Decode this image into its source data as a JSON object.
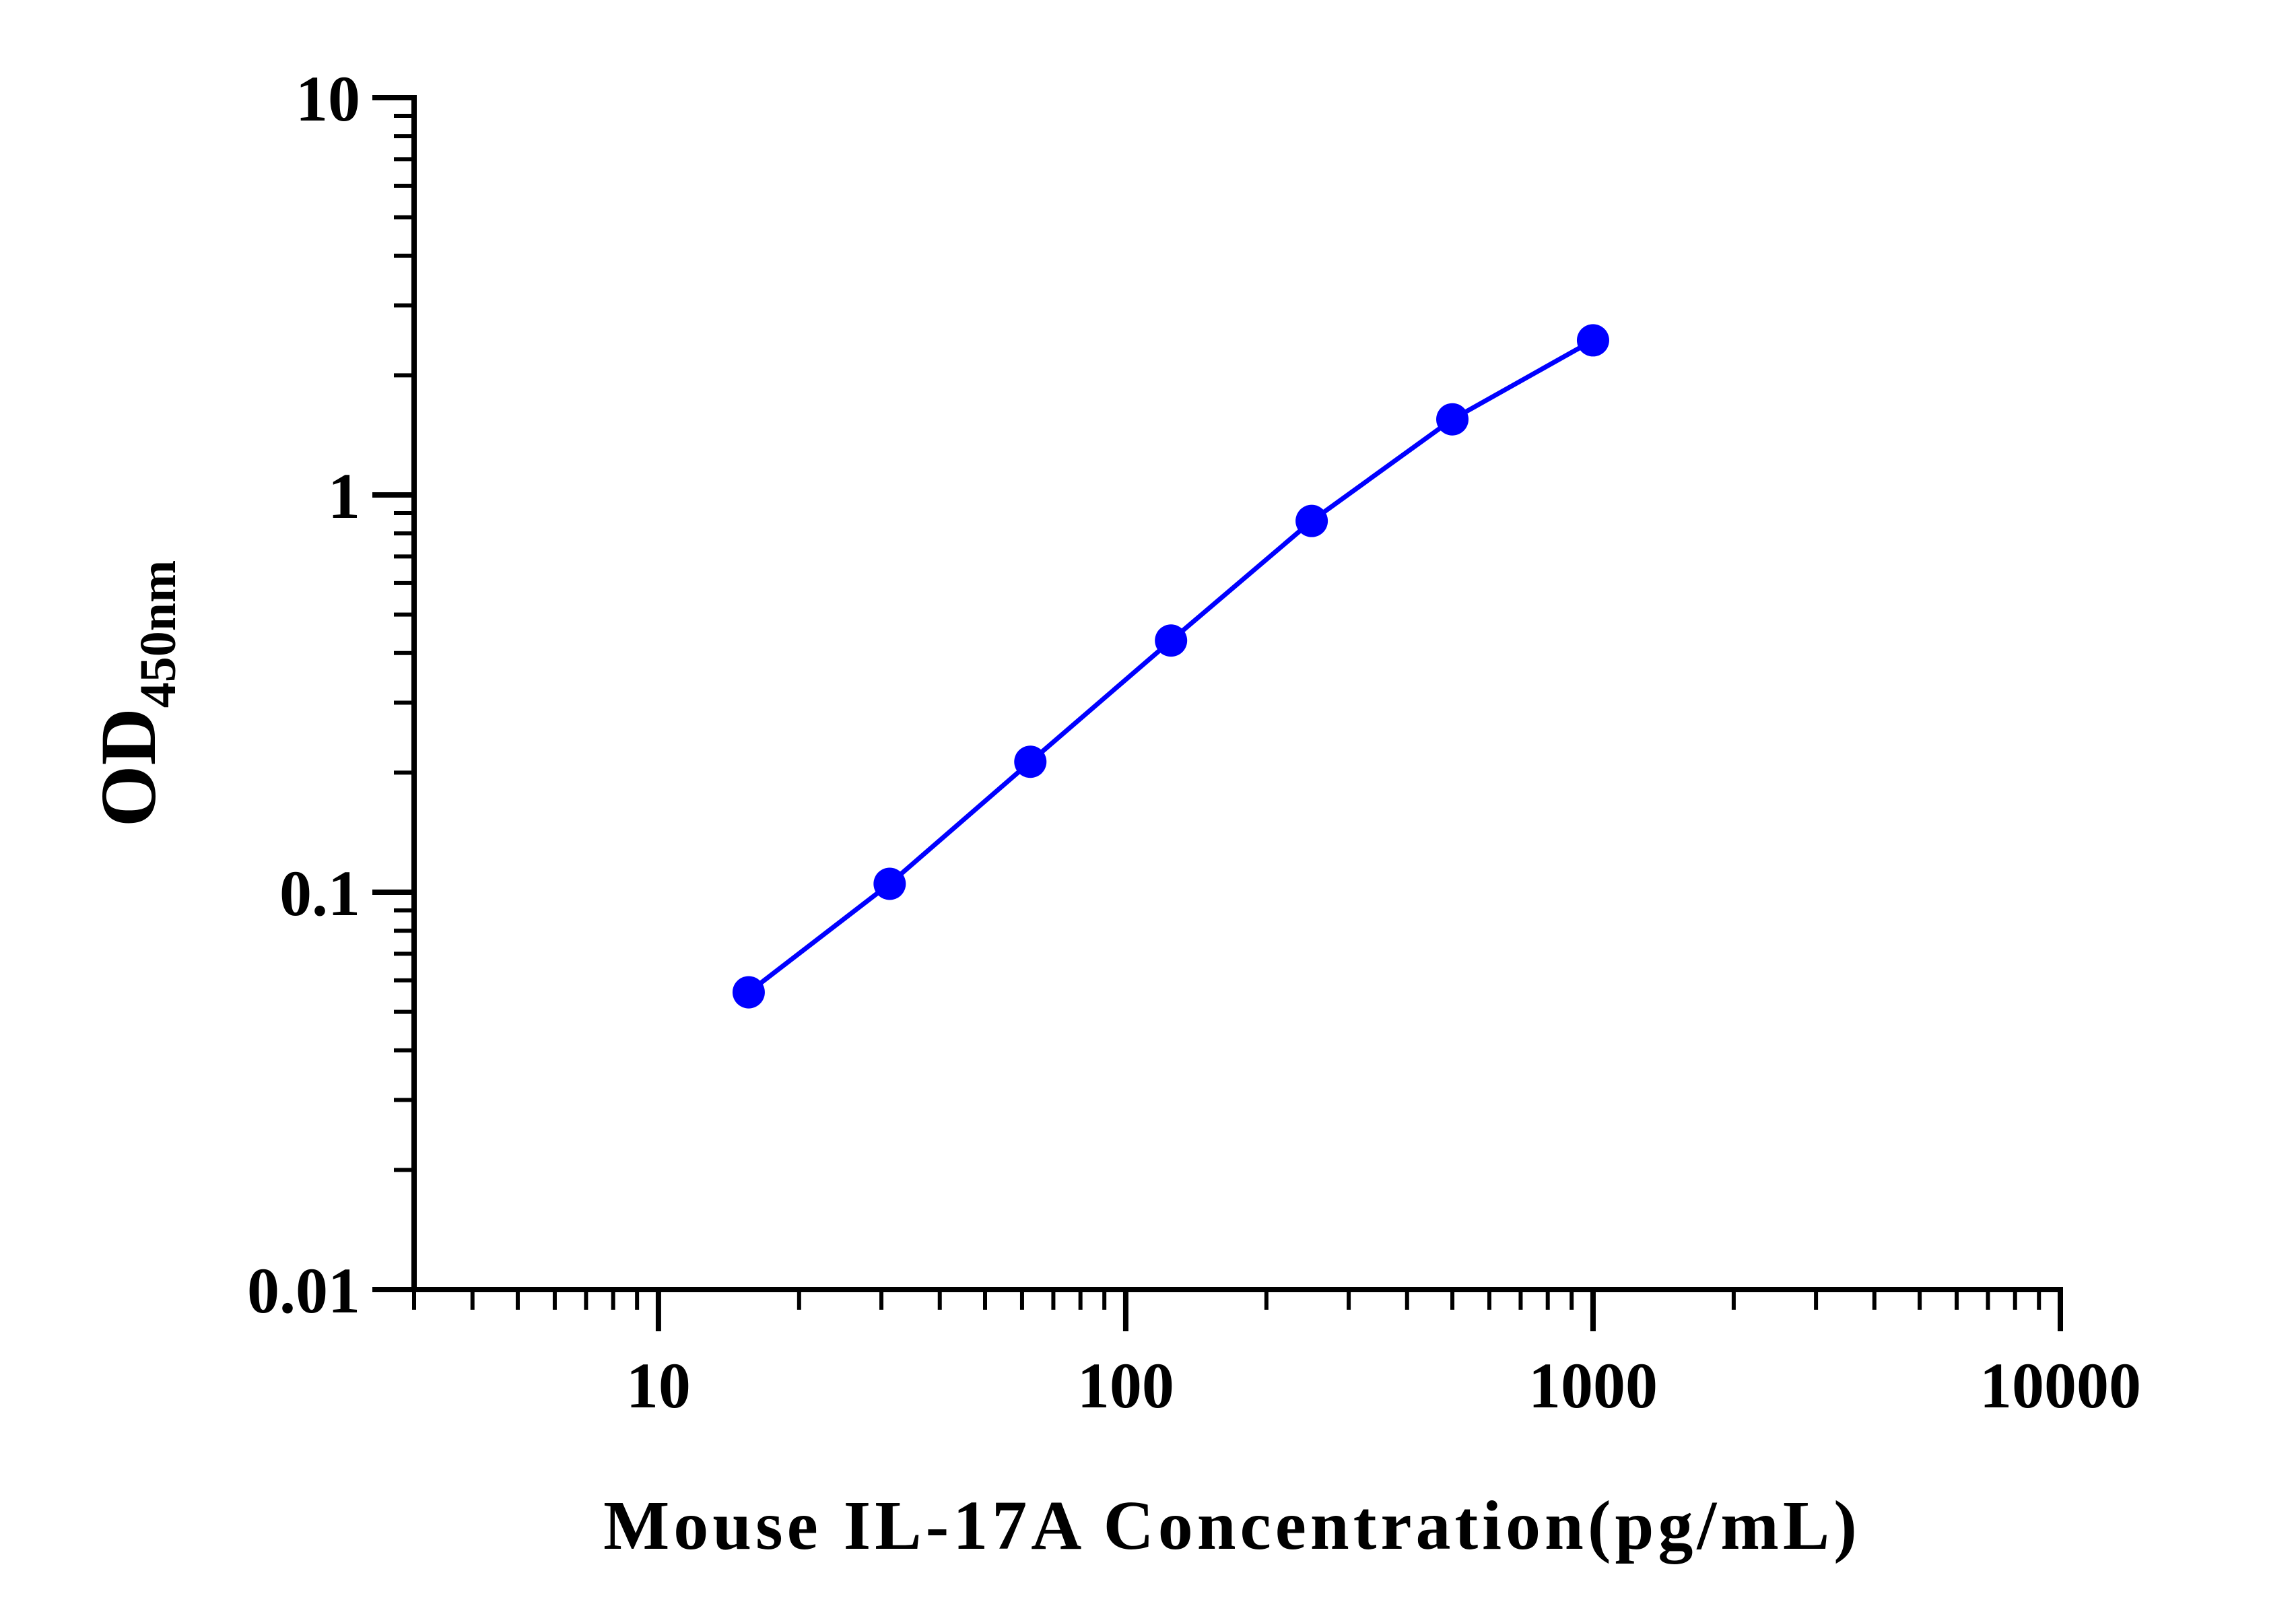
{
  "chart_data": {
    "type": "line",
    "title": "",
    "xlabel": "Mouse IL-17A Concentration(pg/mL)",
    "ylabel": "OD",
    "ylabel_subscript": "450nm",
    "x_scale": "log",
    "y_scale": "log",
    "xlim": [
      3,
      10000
    ],
    "ylim": [
      0.01,
      10
    ],
    "x_ticks": [
      10,
      100,
      1000,
      10000
    ],
    "x_tick_labels": [
      "10",
      "100",
      "1000",
      "10000"
    ],
    "y_ticks": [
      0.01,
      0.1,
      1,
      10
    ],
    "y_tick_labels": [
      "0.01",
      "0.1",
      "1",
      "10"
    ],
    "grid": false,
    "legend": false,
    "series": [
      {
        "x": [
          15.6,
          31.25,
          62.5,
          125,
          250,
          500,
          1000
        ],
        "y": [
          0.056,
          0.105,
          0.213,
          0.43,
          0.86,
          1.55,
          2.45
        ],
        "color": "#0000ff",
        "marker": "circle"
      }
    ]
  }
}
